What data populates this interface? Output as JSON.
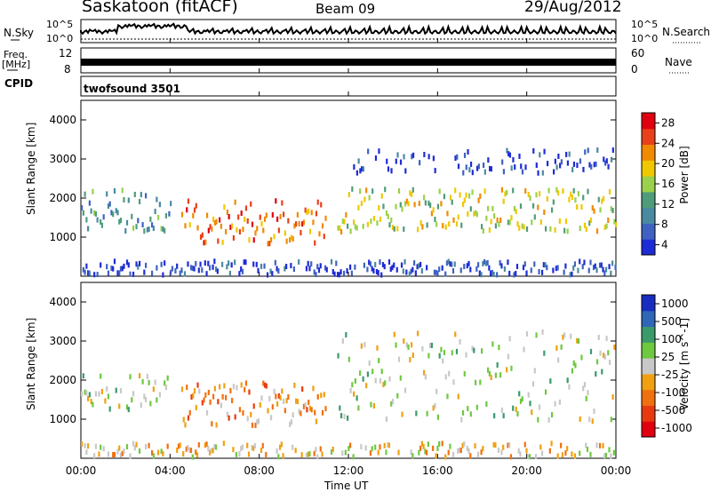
{
  "header": {
    "station": "Saskatoon (fitACF)",
    "beam": "Beam 09",
    "date": "29/Aug/2012"
  },
  "left_labels": {
    "nsky": "N.Sky",
    "freq_top": "Freq.",
    "freq_unit": "[MHz]",
    "cpid": "CPID"
  },
  "right_labels": {
    "nsearch": "N.Search",
    "nave": "Nave"
  },
  "noise_ticks": {
    "top": "10^5",
    "bottom": "10^0"
  },
  "freq_ticks": {
    "left_top": "12",
    "left_bottom": "8",
    "right_top": "60",
    "right_bottom": "0"
  },
  "cpid_text": "twofsound 3501",
  "colors": {
    "power_scale": [
      "#1f2bd6",
      "#3f62c2",
      "#4a8aa0",
      "#4f9c7a",
      "#9ad14a",
      "#f0c800",
      "#f08a00",
      "#e8401a",
      "#e00010"
    ],
    "velocity_scale": [
      "#1a2cc0",
      "#2e66b8",
      "#3a9a6a",
      "#6ec840",
      "#c8c8c8",
      "#f0a010",
      "#f07010",
      "#e83a10",
      "#e00010"
    ]
  },
  "chart_data": [
    {
      "type": "line",
      "title": "Saskatoon (fitACF)",
      "series": [
        {
          "name": "N.Sky"
        },
        {
          "name": "N.Search"
        }
      ],
      "yscale": "log",
      "ylim": [
        "10^0",
        "10^5"
      ]
    },
    {
      "type": "line",
      "series": [
        {
          "name": "Freq. [MHz]"
        },
        {
          "name": "Nave"
        }
      ],
      "ylim_left": [
        8,
        12
      ],
      "ylim_right": [
        0,
        60
      ]
    },
    {
      "type": "heatmap",
      "ylabel": "Slant Range [km]",
      "yticks": [
        "1000",
        "2000",
        "3000",
        "4000"
      ],
      "colorbar": {
        "label": "Power [dB]",
        "ticks": [
          "4",
          "8",
          "12",
          "16",
          "20",
          "24",
          "28"
        ]
      }
    },
    {
      "type": "heatmap",
      "ylabel": "Slant Range [km]",
      "yticks": [
        "1000",
        "2000",
        "3000",
        "4000"
      ],
      "xlabel": "Time UT",
      "xticks": [
        "00:00",
        "04:00",
        "08:00",
        "12:00",
        "16:00",
        "20:00",
        "00:00"
      ],
      "colorbar": {
        "label": "Velocity [m s^-1]",
        "ticks": [
          "1000",
          "500",
          "100",
          "25",
          "-25",
          "-100",
          "-500",
          "-1000"
        ]
      }
    }
  ]
}
